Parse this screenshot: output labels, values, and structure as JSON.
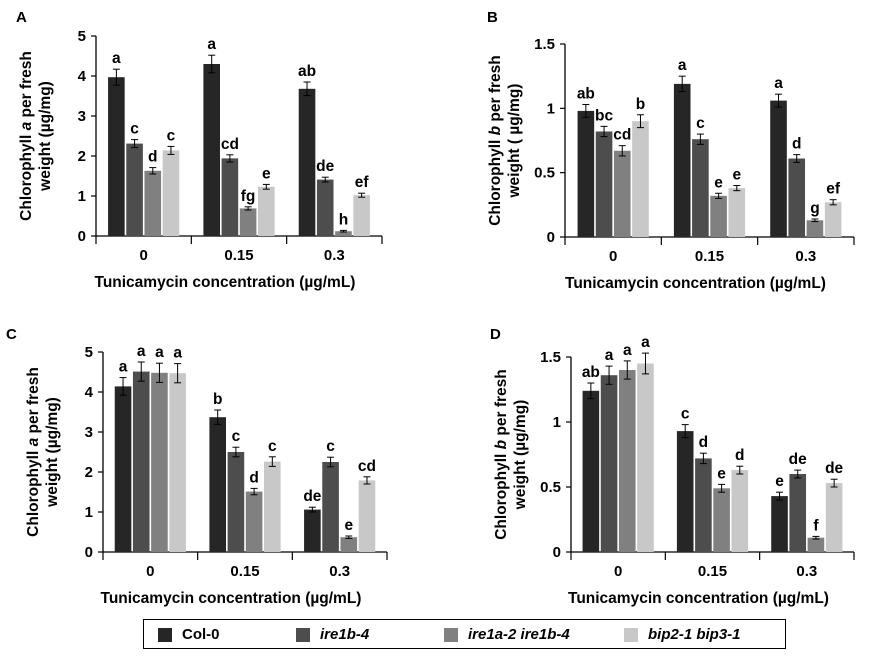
{
  "figure": {
    "series_names": [
      "Col-0",
      "ire1b-4",
      "ire1a-2 ire1b-4",
      "bip2-1 bip3-1"
    ],
    "series_colors": [
      "#262626",
      "#4d4d4d",
      "#808080",
      "#c8c8c8"
    ],
    "legend_italic": [
      false,
      true,
      true,
      true
    ]
  },
  "chart_data": [
    {
      "type": "bar",
      "panel": "A",
      "ylabel_parts": [
        "Chlorophyll ",
        "a",
        " per fresh",
        "weight (µg/mg)"
      ],
      "xlabel": "Tunicamycin concentration (µg/mL)",
      "categories": [
        "0",
        "0.15",
        "0.3"
      ],
      "ylim": [
        0,
        5
      ],
      "yticks": [
        "0",
        "1",
        "2",
        "3",
        "4",
        "5"
      ],
      "series": [
        {
          "name": "Col-0",
          "values": [
            3.97,
            4.3,
            3.68
          ],
          "errors": [
            0.2,
            0.22,
            0.17
          ],
          "letters": [
            "a",
            "a",
            "ab"
          ]
        },
        {
          "name": "ire1b-4",
          "values": [
            2.31,
            1.94,
            1.41
          ],
          "errors": [
            0.1,
            0.09,
            0.06
          ],
          "letters": [
            "c",
            "cd",
            "de"
          ]
        },
        {
          "name": "ire1a-2 ire1b-4",
          "values": [
            1.63,
            0.69,
            0.12
          ],
          "errors": [
            0.08,
            0.04,
            0.02
          ],
          "letters": [
            "d",
            "fg",
            "h"
          ]
        },
        {
          "name": "bip2-1 bip3-1",
          "values": [
            2.14,
            1.23,
            1.02
          ],
          "errors": [
            0.1,
            0.06,
            0.05
          ],
          "letters": [
            "c",
            "e",
            "ef"
          ]
        }
      ]
    },
    {
      "type": "bar",
      "panel": "B",
      "ylabel_parts": [
        "Chlorophyll ",
        "b",
        " per fresh",
        "weight ( µg/mg)"
      ],
      "xlabel": "Tunicamycin concentration (µg/mL)",
      "categories": [
        "0",
        "0.15",
        "0.3"
      ],
      "ylim": [
        0,
        1.5
      ],
      "yticks": [
        "0",
        "0.5",
        "1",
        "1.5"
      ],
      "series": [
        {
          "name": "Col-0",
          "values": [
            0.98,
            1.19,
            1.06
          ],
          "errors": [
            0.05,
            0.06,
            0.05
          ],
          "letters": [
            "ab",
            "a",
            "a"
          ]
        },
        {
          "name": "ire1b-4",
          "values": [
            0.82,
            0.76,
            0.61
          ],
          "errors": [
            0.04,
            0.04,
            0.03
          ],
          "letters": [
            "bc",
            "c",
            "d"
          ]
        },
        {
          "name": "ire1a-2 ire1b-4",
          "values": [
            0.67,
            0.32,
            0.13
          ],
          "errors": [
            0.04,
            0.02,
            0.01
          ],
          "letters": [
            "cd",
            "e",
            "g"
          ]
        },
        {
          "name": "bip2-1 bip3-1",
          "values": [
            0.9,
            0.38,
            0.27
          ],
          "errors": [
            0.05,
            0.02,
            0.02
          ],
          "letters": [
            "b",
            "e",
            "ef"
          ]
        }
      ]
    },
    {
      "type": "bar",
      "panel": "C",
      "ylabel_parts": [
        "Chlorophyll ",
        "a",
        " per fresh",
        "weight (µg/mg)"
      ],
      "xlabel": "Tunicamycin concentration (µg/mL)",
      "categories": [
        "0",
        "0.15",
        "0.3"
      ],
      "ylim": [
        0,
        5
      ],
      "yticks": [
        "0",
        "1",
        "2",
        "3",
        "4",
        "5"
      ],
      "series": [
        {
          "name": "Col-0",
          "values": [
            4.14,
            3.37,
            1.06
          ],
          "errors": [
            0.22,
            0.18,
            0.06
          ],
          "letters": [
            "a",
            "b",
            "de"
          ]
        },
        {
          "name": "ire1b-4",
          "values": [
            4.51,
            2.5,
            2.25
          ],
          "errors": [
            0.24,
            0.12,
            0.12
          ],
          "letters": [
            "a",
            "c",
            "c"
          ]
        },
        {
          "name": "ire1a-2 ire1b-4",
          "values": [
            4.48,
            1.51,
            0.37
          ],
          "errors": [
            0.24,
            0.08,
            0.03
          ],
          "letters": [
            "a",
            "d",
            "e"
          ]
        },
        {
          "name": "bip2-1 bip3-1",
          "values": [
            4.47,
            2.26,
            1.79
          ],
          "errors": [
            0.24,
            0.12,
            0.09
          ],
          "letters": [
            "a",
            "c",
            "cd"
          ]
        }
      ]
    },
    {
      "type": "bar",
      "panel": "D",
      "ylabel_parts": [
        "Chlorophyll ",
        "b",
        " per fresh",
        "weight (µg/mg)"
      ],
      "xlabel": "Tunicamycin concentration (µg/mL)",
      "categories": [
        "0",
        "0.15",
        "0.3"
      ],
      "ylim": [
        0,
        1.5
      ],
      "yticks": [
        "0",
        "0.5",
        "1",
        "1.5"
      ],
      "series": [
        {
          "name": "Col-0",
          "values": [
            1.24,
            0.93,
            0.43
          ],
          "errors": [
            0.06,
            0.05,
            0.03
          ],
          "letters": [
            "ab",
            "c",
            "e"
          ]
        },
        {
          "name": "ire1b-4",
          "values": [
            1.36,
            0.72,
            0.6
          ],
          "errors": [
            0.07,
            0.04,
            0.03
          ],
          "letters": [
            "a",
            "d",
            "de"
          ]
        },
        {
          "name": "ire1a-2 ire1b-4",
          "values": [
            1.4,
            0.49,
            0.11
          ],
          "errors": [
            0.07,
            0.03,
            0.01
          ],
          "letters": [
            "a",
            "e",
            "f"
          ]
        },
        {
          "name": "bip2-1 bip3-1",
          "values": [
            1.45,
            0.63,
            0.53
          ],
          "errors": [
            0.08,
            0.03,
            0.03
          ],
          "letters": [
            "a",
            "d",
            "de"
          ]
        }
      ]
    }
  ]
}
